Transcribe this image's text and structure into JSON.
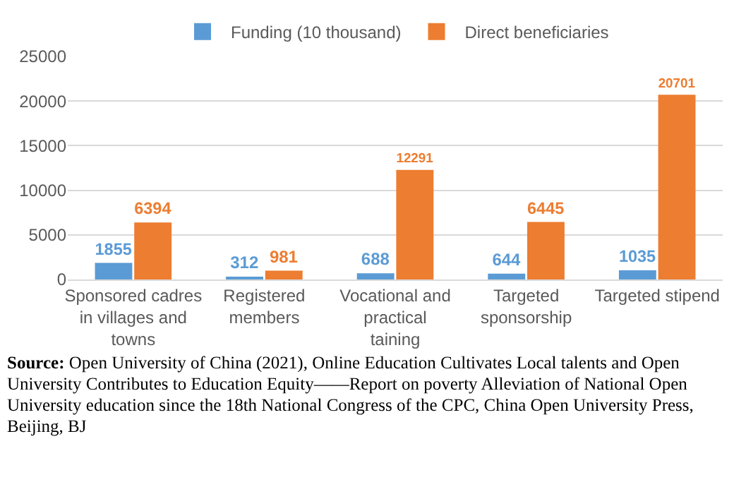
{
  "chart_data": {
    "type": "bar",
    "categories": [
      "Sponsored cadres in villages and towns",
      "Registered members",
      "Vocational and practical taining",
      "Targeted sponsorship",
      "Targeted stipend"
    ],
    "series": [
      {
        "name": "Funding (10 thousand)",
        "color": "#5b9bd5",
        "values": [
          1855,
          312,
          688,
          644,
          1035
        ]
      },
      {
        "name": "Direct beneficiaries",
        "color": "#ed7d31",
        "values": [
          6394,
          981,
          12291,
          6445,
          20701
        ]
      }
    ],
    "ylim": [
      0,
      25000
    ],
    "yticks": [
      0,
      5000,
      10000,
      15000,
      20000,
      25000
    ],
    "grid": "y",
    "legend": "top",
    "data_labels": true,
    "annotations": [
      "Source: Open University of China (2021), Online Education Cultivates Local talents and Open University Contributes to Education Equity——Report on poverty Alleviation of  National Open University education since the 18th National Congress of the CPC, China Open University Press, Beijing, BJ"
    ]
  }
}
